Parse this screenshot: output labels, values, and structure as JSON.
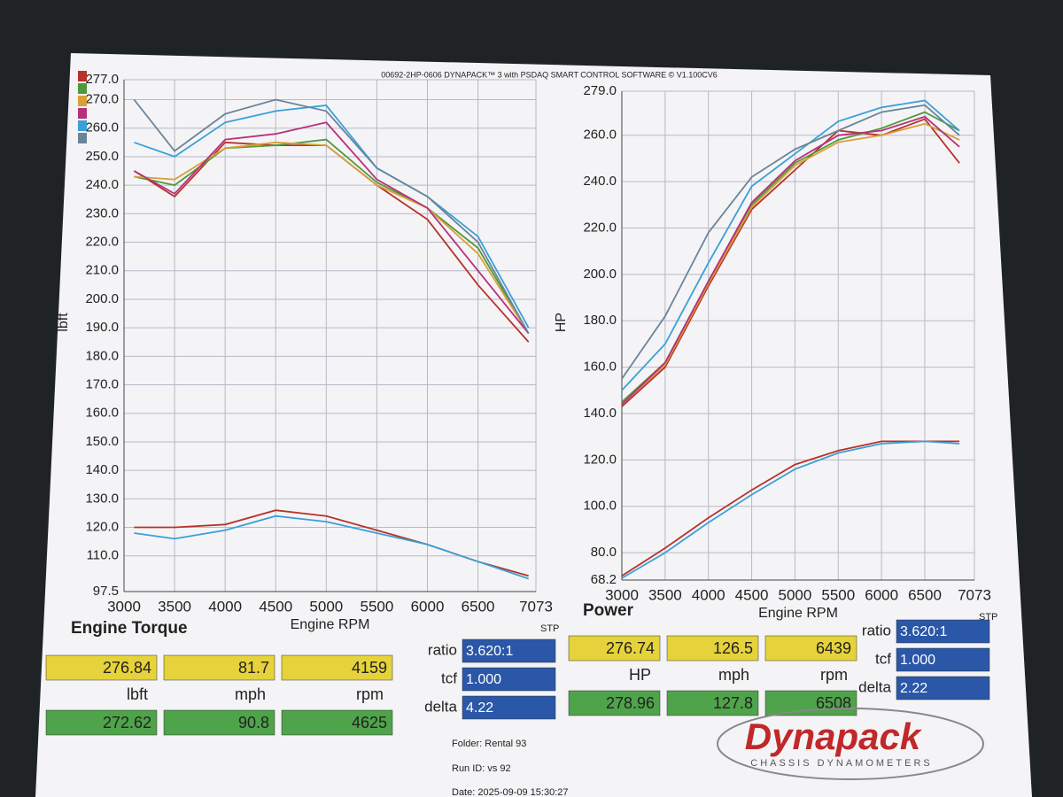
{
  "header": "00692-2HP-0606 DYNAPACK™ 3 with PSDAQ SMART CONTROL SOFTWARE © V1.100CV6",
  "chart_data": [
    {
      "type": "line",
      "title": "Engine Torque",
      "xlabel": "Engine RPM",
      "ylabel": "lbft",
      "correction": "STP",
      "grid": true,
      "x": [
        3100,
        3500,
        4000,
        4500,
        5000,
        5500,
        6000,
        6500,
        7000
      ],
      "xlim": [
        3000,
        7073
      ],
      "xticks": [
        3000,
        3500,
        4000,
        4500,
        5000,
        5500,
        6000,
        6500,
        7073
      ],
      "ylim": [
        97.5,
        277
      ],
      "yticks": [
        {
          "value": 97.5,
          "label": "97.5"
        },
        {
          "value": 110,
          "label": "110.0"
        },
        {
          "value": 120,
          "label": "120.0"
        },
        {
          "value": 130,
          "label": "130.0"
        },
        {
          "value": 140,
          "label": "140.0"
        },
        {
          "value": 150,
          "label": "150.0"
        },
        {
          "value": 160,
          "label": "160.0"
        },
        {
          "value": 170,
          "label": "170.0"
        },
        {
          "value": 180,
          "label": "180.0"
        },
        {
          "value": 190,
          "label": "190.0"
        },
        {
          "value": 200,
          "label": "200.0"
        },
        {
          "value": 210,
          "label": "210.0"
        },
        {
          "value": 220,
          "label": "220.0"
        },
        {
          "value": 230,
          "label": "230.0"
        },
        {
          "value": 240,
          "label": "240.0"
        },
        {
          "value": 250,
          "label": "250.0"
        },
        {
          "value": 260,
          "label": "260.0"
        },
        {
          "value": 270,
          "label": "270.0"
        },
        {
          "value": 277,
          "label": "277.0"
        }
      ],
      "series": [
        {
          "color": "#b8322a",
          "values": [
            245,
            236,
            255,
            254,
            254,
            240,
            228,
            205,
            185
          ]
        },
        {
          "color": "#4e9a3a",
          "values": [
            243,
            240,
            253,
            254,
            256,
            241,
            232,
            218,
            188
          ]
        },
        {
          "color": "#d9a03a",
          "values": [
            243,
            242,
            253,
            255,
            254,
            240,
            232,
            216,
            188
          ]
        },
        {
          "color": "#b8307a",
          "values": [
            245,
            237,
            256,
            258,
            262,
            242,
            232,
            210,
            188
          ]
        },
        {
          "color": "#3aa0d8",
          "values": [
            255,
            250,
            262,
            266,
            268,
            246,
            236,
            222,
            190
          ]
        },
        {
          "color": "#6a8499",
          "values": [
            270,
            252,
            265,
            270,
            266,
            246,
            236,
            220,
            188
          ]
        },
        {
          "color": "#b8322a",
          "values": [
            120,
            120,
            121,
            126,
            124,
            119,
            114,
            108,
            103
          ]
        },
        {
          "color": "#3aa0d8",
          "values": [
            118,
            116,
            119,
            124,
            122,
            118,
            114,
            108,
            102
          ]
        }
      ]
    },
    {
      "type": "line",
      "title": "Power",
      "xlabel": "Engine RPM",
      "ylabel": "HP",
      "correction": "STP",
      "grid": true,
      "x": [
        3000,
        3500,
        4000,
        4500,
        5000,
        5500,
        6000,
        6500,
        6900
      ],
      "xlim": [
        3000,
        7073
      ],
      "xticks": [
        3000,
        3500,
        4000,
        4500,
        5000,
        5500,
        6000,
        6500,
        7073
      ],
      "ylim": [
        68.2,
        279
      ],
      "yticks": [
        {
          "value": 68.2,
          "label": "68.2"
        },
        {
          "value": 80,
          "label": "80.0"
        },
        {
          "value": 100,
          "label": "100.0"
        },
        {
          "value": 120,
          "label": "120.0"
        },
        {
          "value": 140,
          "label": "140.0"
        },
        {
          "value": 160,
          "label": "160.0"
        },
        {
          "value": 180,
          "label": "180.0"
        },
        {
          "value": 200,
          "label": "200.0"
        },
        {
          "value": 220,
          "label": "220.0"
        },
        {
          "value": 240,
          "label": "240.0"
        },
        {
          "value": 260,
          "label": "260.0"
        },
        {
          "value": 279,
          "label": "279.0"
        }
      ],
      "series": [
        {
          "color": "#b8322a",
          "values": [
            143,
            160,
            195,
            228,
            245,
            262,
            260,
            267,
            248
          ]
        },
        {
          "color": "#4e9a3a",
          "values": [
            145,
            162,
            197,
            230,
            248,
            258,
            263,
            270,
            262
          ]
        },
        {
          "color": "#d9a03a",
          "values": [
            144,
            161,
            196,
            229,
            247,
            257,
            260,
            265,
            258
          ]
        },
        {
          "color": "#b8307a",
          "values": [
            144,
            162,
            197,
            231,
            249,
            260,
            262,
            268,
            255
          ]
        },
        {
          "color": "#3aa0d8",
          "values": [
            150,
            170,
            205,
            238,
            252,
            266,
            272,
            275,
            262
          ]
        },
        {
          "color": "#6a8499",
          "values": [
            155,
            182,
            218,
            242,
            254,
            262,
            270,
            273,
            260
          ]
        },
        {
          "color": "#b8322a",
          "values": [
            70,
            82,
            95,
            107,
            118,
            124,
            128,
            128,
            128
          ]
        },
        {
          "color": "#3aa0d8",
          "values": [
            69,
            80,
            93,
            105,
            116,
            123,
            127,
            128,
            127
          ]
        }
      ]
    }
  ],
  "torque_panel": {
    "row1": [
      276.84,
      81.7,
      4159
    ],
    "units": [
      "lbft",
      "mph",
      "rpm"
    ],
    "row2": [
      272.62,
      90.8,
      4625
    ],
    "ratio_label": "ratio",
    "ratio": "3.620:1",
    "tcf_label": "tcf",
    "tcf": "1.000",
    "delta_label": "delta",
    "delta": 4.22
  },
  "power_panel": {
    "row1": [
      276.74,
      126.5,
      6439
    ],
    "units": [
      "HP",
      "mph",
      "rpm"
    ],
    "row2": [
      278.96,
      127.8,
      6508
    ],
    "ratio_label": "ratio",
    "ratio": "3.620:1",
    "tcf_label": "tcf",
    "tcf": "1.000",
    "delta_label": "delta",
    "delta": 2.22
  },
  "run_info": {
    "folder": "Folder:  Rental 93",
    "run_id": "Run ID:  vs 92",
    "date": "Date:  2025-09-09 15:30:27"
  },
  "logo": {
    "brand": "Dynapack",
    "sub": "CHASSIS DYNAMOMETERS"
  }
}
